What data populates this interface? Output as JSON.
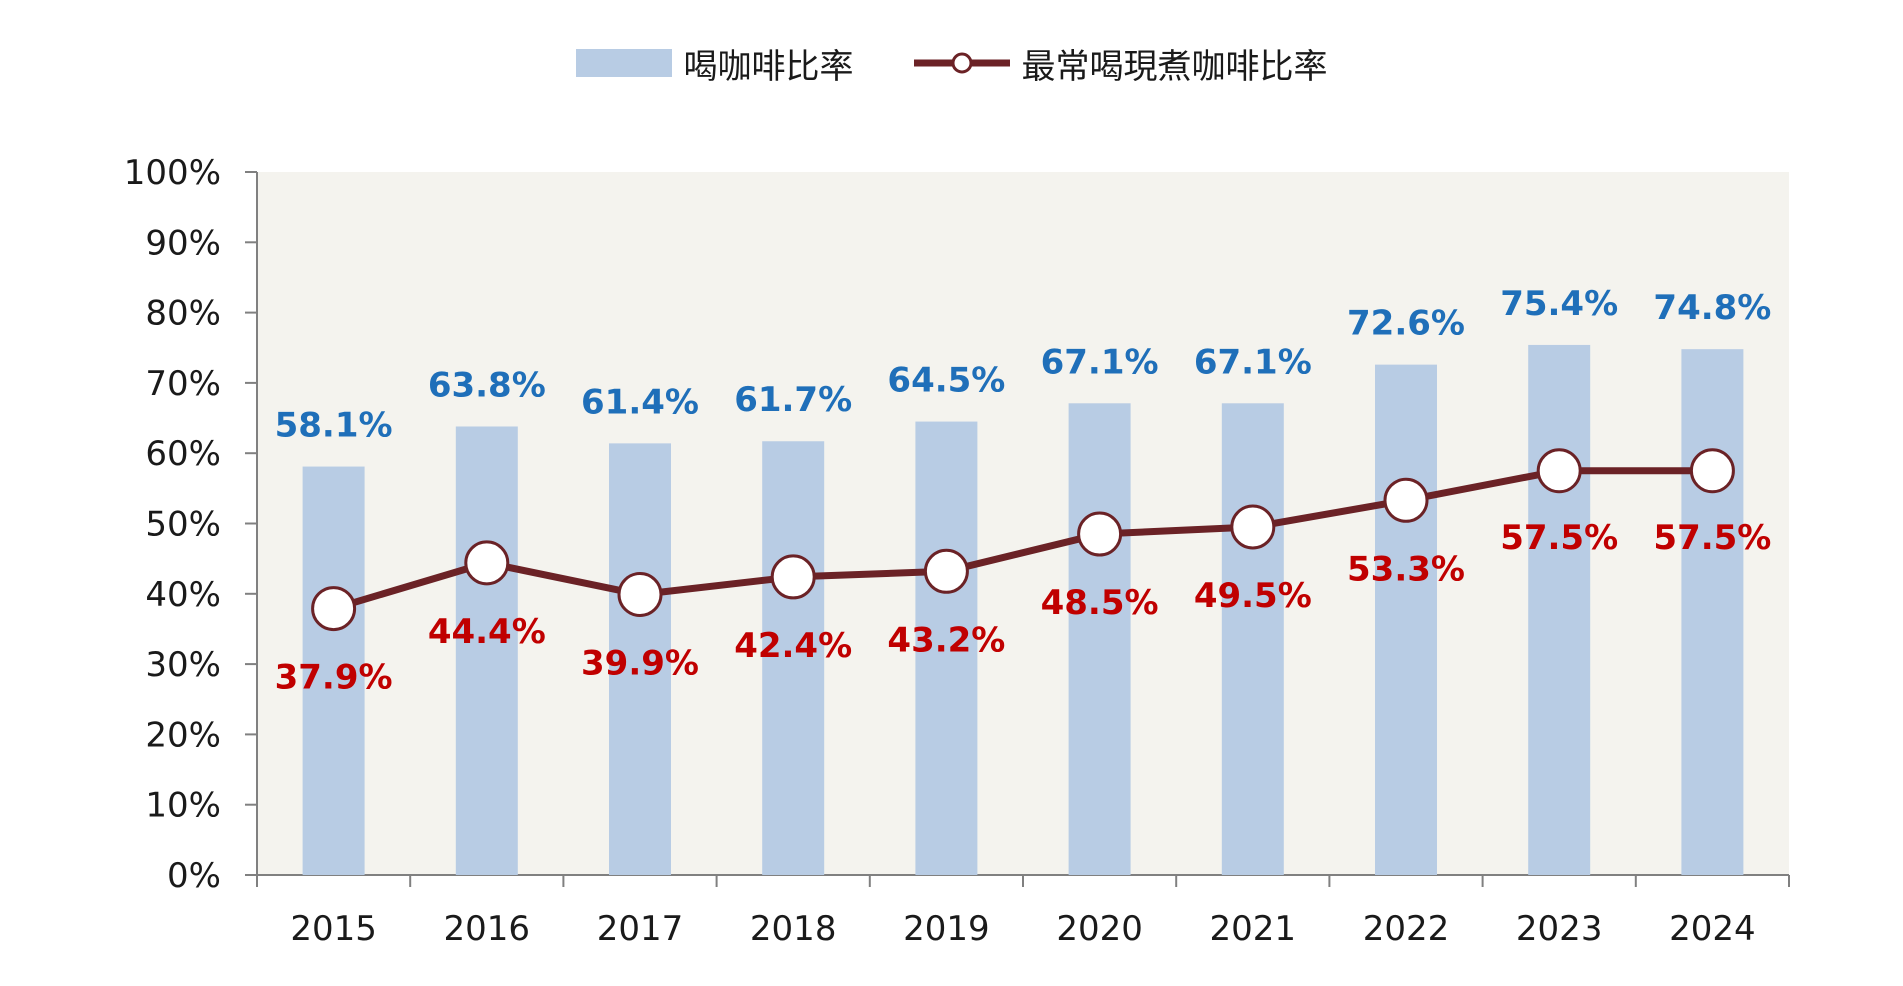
{
  "chart_data": {
    "type": "bar",
    "categories": [
      "2015",
      "2016",
      "2017",
      "2018",
      "2019",
      "2020",
      "2021",
      "2022",
      "2023",
      "2024"
    ],
    "series": [
      {
        "name": "喝咖啡比率",
        "type": "bar",
        "color": "#b8cce4",
        "label_color": "#1f6fb9",
        "values": [
          58.1,
          63.8,
          61.4,
          61.7,
          64.5,
          67.1,
          67.1,
          72.6,
          75.4,
          74.8
        ],
        "labels": [
          "58.1%",
          "63.8%",
          "61.4%",
          "61.7%",
          "64.5%",
          "67.1%",
          "67.1%",
          "72.6%",
          "75.4%",
          "74.8%"
        ]
      },
      {
        "name": "最常喝現煮咖啡比率",
        "type": "line",
        "color": "#6b2226",
        "label_color": "#c00000",
        "values": [
          37.9,
          44.4,
          39.9,
          42.4,
          43.2,
          48.5,
          49.5,
          53.3,
          57.5,
          57.5
        ],
        "labels": [
          "37.9%",
          "44.4%",
          "39.9%",
          "42.4%",
          "43.2%",
          "48.5%",
          "49.5%",
          "53.3%",
          "57.5%",
          "57.5%"
        ]
      }
    ],
    "ylim": [
      0,
      100
    ],
    "yticks": [
      "0%",
      "10%",
      "20%",
      "30%",
      "40%",
      "50%",
      "60%",
      "70%",
      "80%",
      "90%",
      "100%"
    ],
    "plot_background": "#f4f3ee",
    "grid": false,
    "legend_position": "top-center",
    "title": "",
    "xlabel": "",
    "ylabel": ""
  }
}
